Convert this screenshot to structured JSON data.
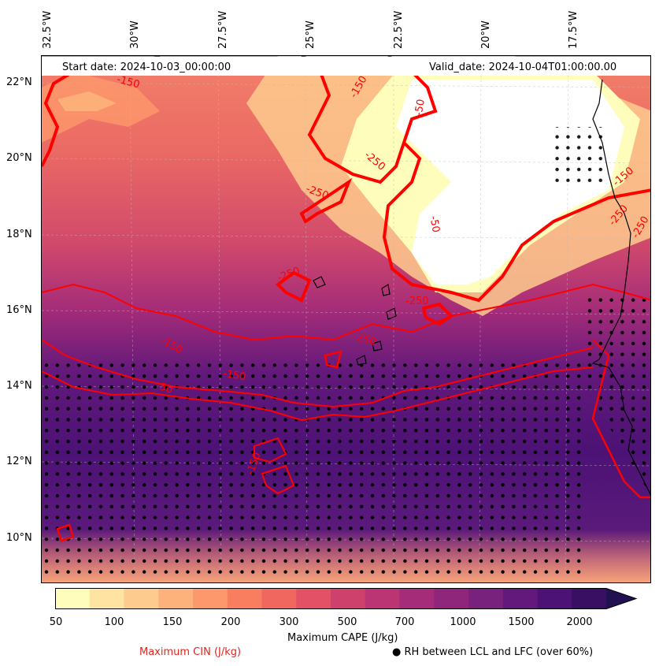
{
  "map": {
    "start_date": "Start date: 2024-10-03_00:00:00",
    "valid_date": "Valid_date: 2024-10-04T01:00:00.00",
    "lon_labels": [
      "32.5°W",
      "30°W",
      "27.5°W",
      "25°W",
      "22.5°W",
      "20°W",
      "17.5°W"
    ],
    "lat_labels": [
      "22°N",
      "20°N",
      "18°N",
      "16°N",
      "14°N",
      "12°N",
      "10°N"
    ],
    "contour_labels": [
      "-150",
      "-150",
      "-250",
      "-250",
      "-50",
      "-50",
      "-250",
      "-150",
      "-250",
      "-250",
      "-150",
      "-250",
      "-50",
      "-150",
      "-250",
      "-150"
    ],
    "colors": {
      "cin_contour": "#ff0000",
      "coast": "#000000"
    }
  },
  "colorbar": {
    "title": "Maximum CAPE (J/kg)",
    "ticks": [
      "50",
      "100",
      "150",
      "200",
      "300",
      "500",
      "700",
      "1000",
      "1500",
      "2000"
    ],
    "colors": [
      "#fffdbb",
      "#fee3a3",
      "#fecb8e",
      "#fdb27b",
      "#fc986b",
      "#f97e5f",
      "#f06760",
      "#e25165",
      "#cf416d",
      "#bb3574",
      "#a52c79",
      "#8f267c",
      "#79227d",
      "#62197b",
      "#4c1275",
      "#380f62",
      "#221150"
    ]
  },
  "legend": {
    "cin_label": "Maximum CIN (J/kg)",
    "rh_label": "RH between LCL and LFC (over 60%)",
    "rh_marker": "●"
  }
}
